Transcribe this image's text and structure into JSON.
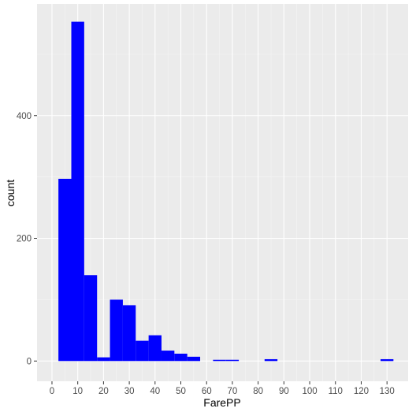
{
  "chart_data": {
    "type": "histogram",
    "x_label": "FarePP",
    "y_label": "count",
    "bins": [
      2.5,
      7.5,
      12.5,
      17.5,
      22.5,
      27.5,
      32.5,
      37.5,
      42.5,
      47.5,
      52.5,
      57.5,
      62.5,
      67.5,
      72.5,
      77.5,
      82.5,
      87.5,
      92.5,
      97.5,
      102.5,
      107.5,
      112.5,
      117.5,
      122.5,
      127.5,
      132.5
    ],
    "values": [
      297,
      553,
      140,
      6,
      100,
      91,
      33,
      42,
      17,
      12,
      7,
      0,
      2,
      2,
      0,
      0,
      3,
      0,
      0,
      0,
      0,
      0,
      0,
      0,
      0,
      3
    ],
    "color": "#0000ff",
    "xlim": [
      -5.8,
      138.2
    ],
    "xticks": [
      0,
      10,
      20,
      30,
      40,
      50,
      60,
      70,
      80,
      90,
      100,
      110,
      120,
      130
    ],
    "ylim": [
      -33,
      582
    ],
    "yticks": [
      0,
      200,
      400
    ],
    "grid": true
  }
}
